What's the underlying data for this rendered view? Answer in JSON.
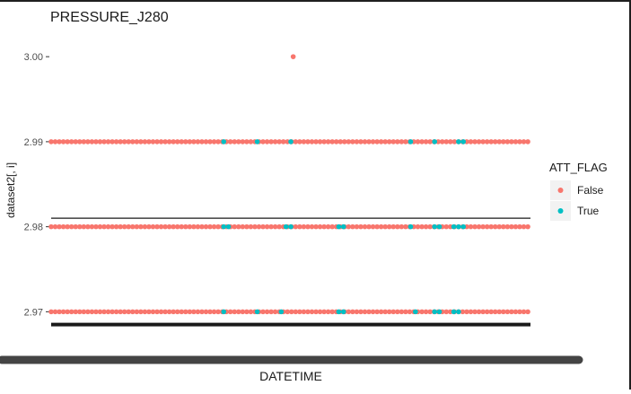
{
  "chart_data": {
    "type": "scatter",
    "title": "PRESSURE_J280",
    "xlabel": "DATETIME",
    "ylabel": "dataset2[, i]",
    "ylim": [
      2.9655,
      3.0035
    ],
    "yticks": [
      2.97,
      2.98,
      2.99,
      3.0
    ],
    "ytick_labels": [
      "2.97",
      "2.98",
      "2.99",
      "3.00"
    ],
    "x_ticks_overplotted": true,
    "grid": false,
    "legend": {
      "title": "ATT_FLAG",
      "placement": "right",
      "entries": [
        {
          "label": "False",
          "color": "#F8766D"
        },
        {
          "label": "True",
          "color": "#00BFC4"
        }
      ]
    },
    "colors": {
      "False": "#F8766D",
      "True": "#00BFC4",
      "axis": "#333333"
    },
    "x_domain": [
      0,
      100
    ],
    "reference_lines": [
      {
        "y": 2.981,
        "x_from": 0,
        "x_to": 100
      },
      {
        "y": 2.9685,
        "x_from": 0,
        "x_to": 100
      }
    ],
    "series": [
      {
        "name": "False",
        "y": 3.0,
        "x": [
          50.5
        ]
      },
      {
        "name": "False",
        "y": 2.99,
        "x_from": 0,
        "x_to": 100,
        "step": 0.85
      },
      {
        "name": "True",
        "y": 2.99,
        "x": [
          36,
          43,
          50,
          75,
          80,
          85,
          86
        ]
      },
      {
        "name": "False",
        "y": 2.98,
        "x_from": 0,
        "x_to": 100,
        "step": 0.85
      },
      {
        "name": "True",
        "y": 2.98,
        "x": [
          36,
          37,
          49,
          50,
          60,
          61,
          75,
          80,
          81,
          84,
          85,
          86
        ]
      },
      {
        "name": "False",
        "y": 2.97,
        "x_from": 0,
        "x_to": 100,
        "step": 0.85
      },
      {
        "name": "True",
        "y": 2.97,
        "x": [
          36,
          43,
          48,
          60,
          61,
          76,
          80,
          81,
          84,
          85
        ]
      }
    ]
  }
}
